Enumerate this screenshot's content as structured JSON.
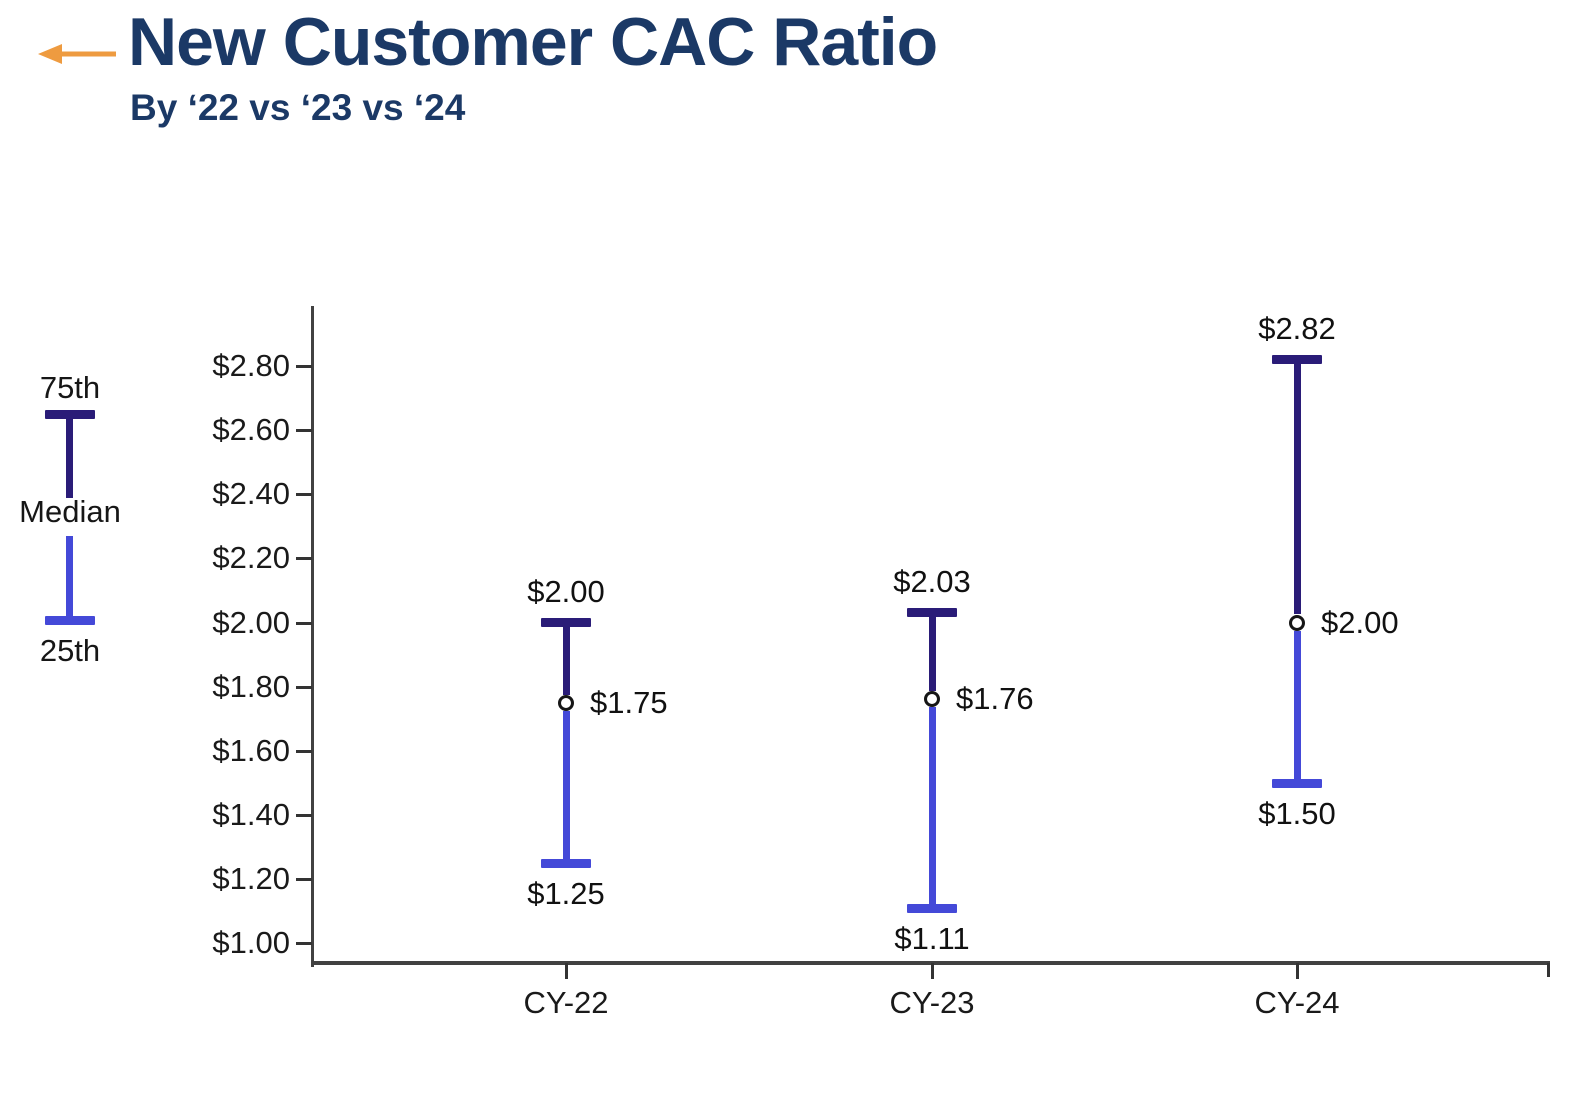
{
  "header": {
    "title": "New Customer CAC Ratio",
    "subtitle": "By ‘22 vs ‘23 vs ‘24",
    "arrow_color": "#EE9B40",
    "title_color": "#1B3966"
  },
  "legend": {
    "top_label": "75th",
    "mid_label": "Median",
    "bottom_label": "25th"
  },
  "chart_data": {
    "type": "range",
    "title": "New Customer CAC Ratio",
    "subtitle": "By ‘22 vs ‘23 vs ‘24",
    "categories": [
      "CY-22",
      "CY-23",
      "CY-24"
    ],
    "series": [
      {
        "category": "CY-22",
        "p75": 2.0,
        "median": 1.75,
        "p25": 1.25,
        "p75_label": "$2.00",
        "median_label": "$1.75",
        "p25_label": "$1.25"
      },
      {
        "category": "CY-23",
        "p75": 2.03,
        "median": 1.76,
        "p25": 1.11,
        "p75_label": "$2.03",
        "median_label": "$1.76",
        "p25_label": "$1.11"
      },
      {
        "category": "CY-24",
        "p75": 2.82,
        "median": 2.0,
        "p25": 1.5,
        "p75_label": "$2.82",
        "median_label": "$2.00",
        "p25_label": "$1.50"
      }
    ],
    "y_ticks": [
      1.0,
      1.2,
      1.4,
      1.6,
      1.8,
      2.0,
      2.2,
      2.4,
      2.6,
      2.8
    ],
    "y_tick_prefix": "$",
    "ylim": [
      0.94,
      3.0
    ],
    "xlabel": "",
    "ylabel": "",
    "grid": false,
    "legend": {
      "position": "left",
      "items": [
        "75th",
        "Median",
        "25th"
      ]
    },
    "colors": {
      "upper_segment": "#2A1C78",
      "lower_segment": "#4449D8",
      "median_marker_fill": "#FFFFFF",
      "median_marker_stroke": "#161616",
      "axis": "#414141"
    }
  }
}
